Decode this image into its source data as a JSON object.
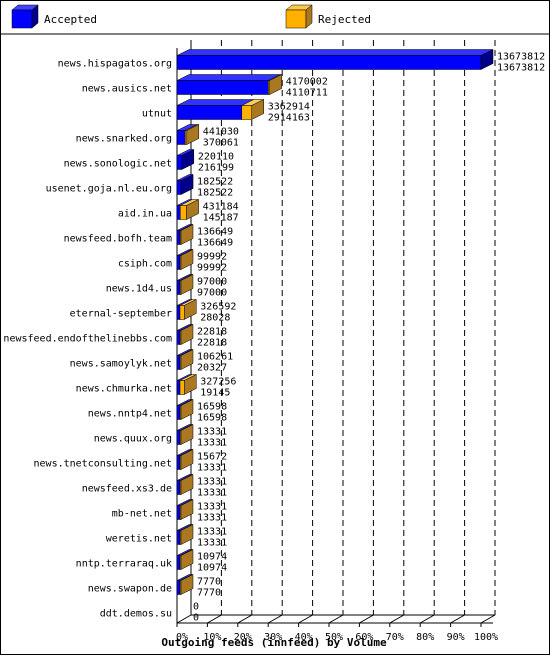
{
  "legend": {
    "accepted_label": "Accepted",
    "rejected_label": "Rejected",
    "accepted_color": "#0000ff",
    "rejected_color": "#ffb000",
    "accepted_color_dark": "#000088",
    "rejected_color_dark": "#aa7722"
  },
  "chart_data": {
    "type": "bar",
    "orientation": "horizontal",
    "xlabel": "Outgoing feeds (innfeed) by Volume",
    "x_ticks": [
      "0%",
      "10%",
      "20%",
      "30%",
      "40%",
      "50%",
      "60%",
      "70%",
      "80%",
      "90%",
      "100%"
    ],
    "xlim": [
      0,
      100
    ],
    "categories": [
      "news.hispagatos.org",
      "news.ausics.net",
      "utnut",
      "news.snarked.org",
      "news.sonologic.net",
      "usenet.goja.nl.eu.org",
      "aid.in.ua",
      "newsfeed.bofh.team",
      "csiph.com",
      "news.1d4.us",
      "eternal-september",
      "newsfeed.endofthelinebbs.com",
      "news.samoylyk.net",
      "news.chmurka.net",
      "news.nntp4.net",
      "news.quux.org",
      "news.tnetconsulting.net",
      "newsfeed.xs3.de",
      "mb-net.net",
      "weretis.net",
      "nntp.terraraq.uk",
      "news.swapon.de",
      "ddt.demos.su"
    ],
    "series": [
      {
        "name": "Accepted",
        "values": [
          13673812,
          4170002,
          3362914,
          441030,
          220110,
          182522,
          431184,
          136649,
          99992,
          97000,
          326592,
          22818,
          106261,
          327256,
          16598,
          13331,
          15672,
          13331,
          13331,
          13331,
          10974,
          7770,
          0
        ]
      },
      {
        "name": "Rejected",
        "values": [
          13673812,
          4110711,
          2914163,
          370061,
          216199,
          182522,
          145187,
          136649,
          99992,
          97000,
          28028,
          22818,
          20327,
          19145,
          16598,
          13331,
          13331,
          13331,
          13331,
          13331,
          10974,
          7770,
          0
        ]
      }
    ],
    "grid": true,
    "legend": "top"
  }
}
